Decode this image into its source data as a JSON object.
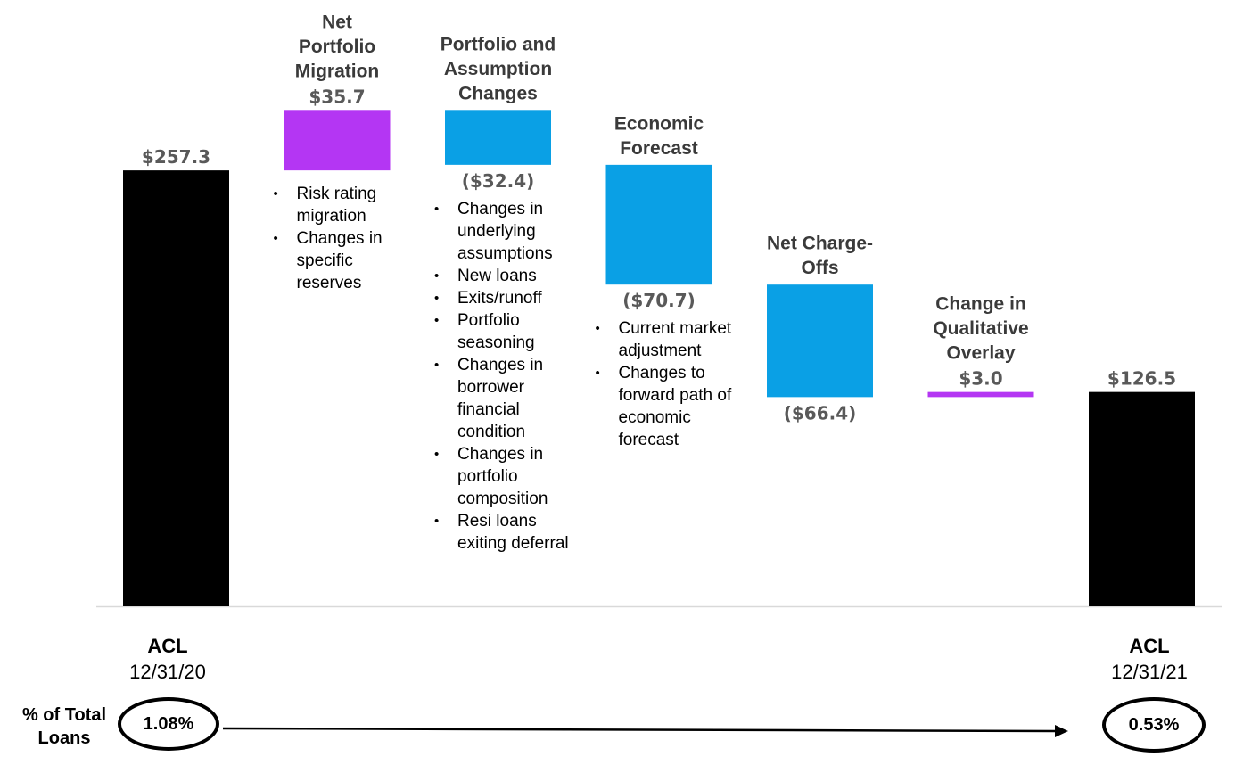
{
  "colors": {
    "start_end": "#000000",
    "increase": "#b436f3",
    "decrease": "#0aa0e5",
    "baseline": "#d9d9d9"
  },
  "chart_data": {
    "type": "waterfall",
    "ylim": [
      0,
      300
    ],
    "bars": [
      {
        "id": "acl_start",
        "title": "",
        "value": 257.3,
        "label": "$257.3",
        "kind": "total",
        "bullets": []
      },
      {
        "id": "migration",
        "title": "Net Portfolio Migration",
        "value": 35.7,
        "label": "$35.7",
        "kind": "increase",
        "bullets": [
          "Risk rating migration",
          "Changes in specific reserves"
        ]
      },
      {
        "id": "assumption",
        "title": "Portfolio and Assumption Changes",
        "value": -32.4,
        "label": "($32.4)",
        "kind": "decrease",
        "bullets": [
          "Changes in underlying assumptions",
          "New loans",
          "Exits/runoff",
          "Portfolio seasoning",
          "Changes in borrower financial condition",
          "Changes in portfolio composition",
          "Resi loans exiting deferral"
        ]
      },
      {
        "id": "forecast",
        "title": "Economic Forecast",
        "value": -70.7,
        "label": "($70.7)",
        "kind": "decrease",
        "bullets": [
          "Current market adjustment",
          "Changes to forward path of economic forecast"
        ]
      },
      {
        "id": "chargeoffs",
        "title": "Net Charge-Offs",
        "value": -66.4,
        "label": "($66.4)",
        "kind": "decrease",
        "bullets": []
      },
      {
        "id": "overlay",
        "title": "Change in Qualitative Overlay",
        "value": 3.0,
        "label": "$3.0",
        "kind": "increase",
        "bullets": []
      },
      {
        "id": "acl_end",
        "title": "",
        "value": 126.5,
        "label": "$126.5",
        "kind": "total",
        "bullets": []
      }
    ]
  },
  "axis": {
    "start": {
      "label": "ACL",
      "date": "12/31/20"
    },
    "end": {
      "label": "ACL",
      "date": "12/31/21"
    }
  },
  "pct": {
    "label": "% of Total Loans",
    "start": "1.08%",
    "end": "0.53%"
  }
}
